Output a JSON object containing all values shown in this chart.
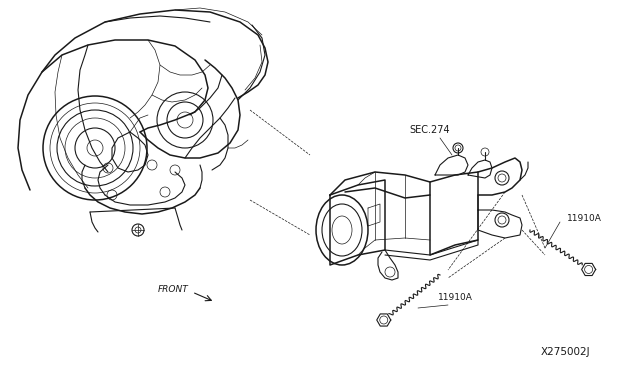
{
  "background_color": "#ffffff",
  "labels": {
    "sec274": "SEC.274",
    "11910A_1": "11910A",
    "11910A_2": "11910A",
    "front": "FRONT",
    "diagram_id": "X275002J"
  },
  "line_color": "#1a1a1a",
  "text_color": "#1a1a1a",
  "font_size_label": 6.5,
  "font_size_id": 7.0,
  "figsize": [
    6.4,
    3.72
  ],
  "dpi": 100
}
